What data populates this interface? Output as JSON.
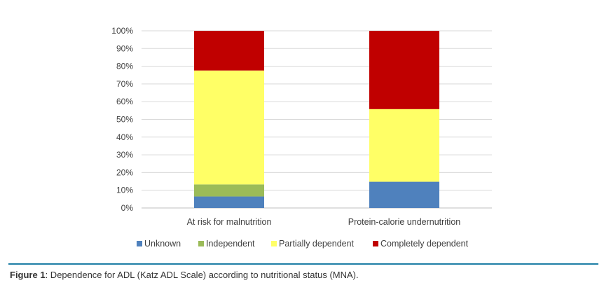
{
  "chart_data": {
    "type": "bar",
    "stacked": true,
    "categories": [
      "At risk for malnutrition",
      "Protein-calorie undernutrition"
    ],
    "series": [
      {
        "name": "Unknown",
        "color": "#4f81bd",
        "values": [
          6.5,
          14.8
        ]
      },
      {
        "name": "Independent",
        "color": "#9bbb59",
        "values": [
          6.8,
          0
        ]
      },
      {
        "name": "Partially dependent",
        "color": "#ffff66",
        "values": [
          64.3,
          41.0
        ]
      },
      {
        "name": "Completely dependent",
        "color": "#c00000",
        "values": [
          22.4,
          44.2
        ]
      }
    ],
    "yticks": [
      "0%",
      "10%",
      "20%",
      "30%",
      "40%",
      "50%",
      "60%",
      "70%",
      "80%",
      "90%",
      "100%"
    ],
    "ylim": [
      0,
      100
    ],
    "grid": true,
    "legend": "bottom"
  },
  "caption": {
    "label": "Figure 1",
    "text": ":  Dependence for ADL (Katz ADL Scale) according to nutritional status (MNA)."
  }
}
